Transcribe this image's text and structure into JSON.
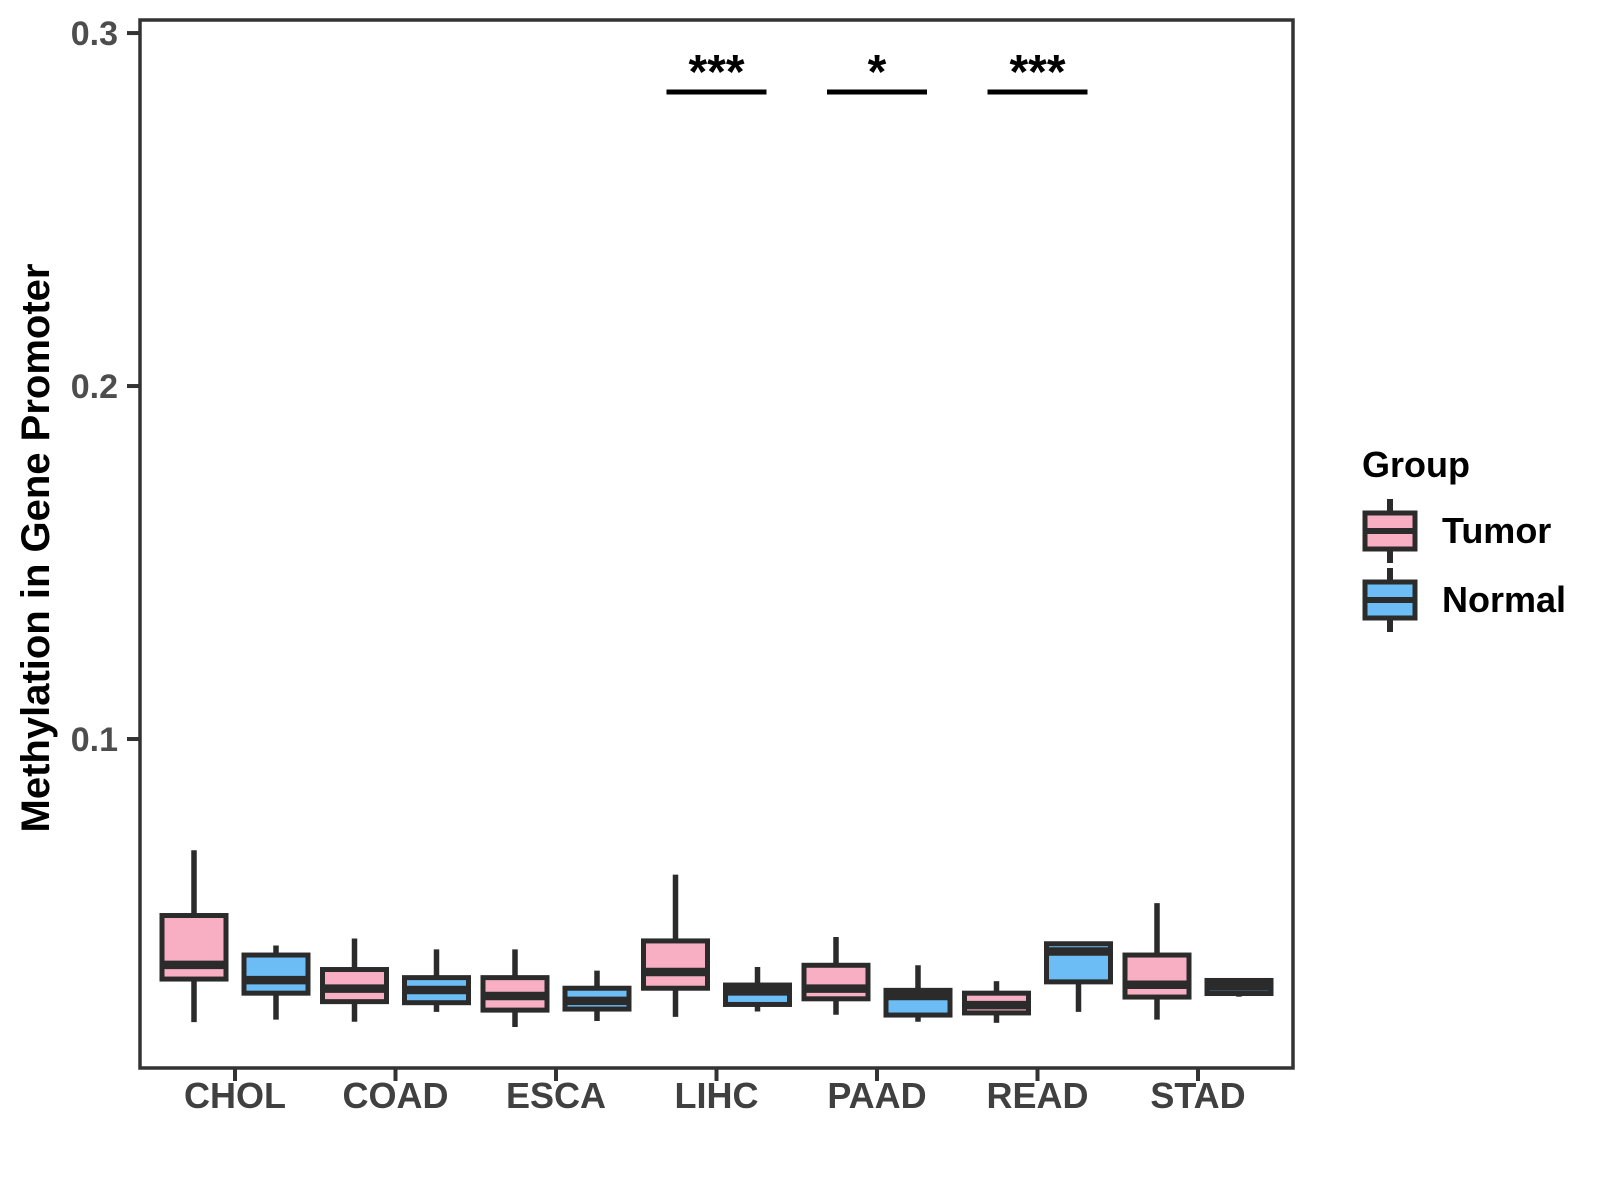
{
  "figure": {
    "kind": "grouped boxplot",
    "background": "#ffffff"
  },
  "colors": {
    "tumor_fill": "#F9AFC3",
    "normal_fill": "#6CBCF5",
    "box_stroke": "#2B2B2B",
    "panel_border": "#333333",
    "tick_text": "#4D4D4D",
    "xlabel_text": "#404040",
    "sig_text": "#000000"
  },
  "legend": {
    "title": "Group",
    "items": [
      {
        "label": "Tumor",
        "color_key": "tumor_fill"
      },
      {
        "label": "Normal",
        "color_key": "normal_fill"
      }
    ]
  },
  "significance": [
    {
      "category": "LIHC",
      "label": "***"
    },
    {
      "category": "PAAD",
      "label": "*"
    },
    {
      "category": "READ",
      "label": "***"
    }
  ],
  "chart_data": {
    "type": "boxplot",
    "title": "",
    "xlabel": "",
    "ylabel": "Methylation in Gene Promoter",
    "categories": [
      "CHOL",
      "COAD",
      "ESCA",
      "LIHC",
      "PAAD",
      "READ",
      "STAD"
    ],
    "ylim": [
      0.0068,
      0.3037
    ],
    "yticks": [
      {
        "value": 0.1,
        "label": "0.1"
      },
      {
        "value": 0.2,
        "label": "0.2"
      },
      {
        "value": 0.3,
        "label": "0.3"
      }
    ],
    "grid": false,
    "legend_position": "right",
    "series": [
      {
        "name": "Tumor",
        "color_key": "tumor_fill",
        "boxes": [
          {
            "category": "CHOL",
            "min": 0.0198,
            "q1": 0.032,
            "median": 0.036,
            "q3": 0.05,
            "max": 0.0685
          },
          {
            "category": "COAD",
            "min": 0.0199,
            "q1": 0.0256,
            "median": 0.0293,
            "q3": 0.0347,
            "max": 0.0435
          },
          {
            "category": "ESCA",
            "min": 0.0184,
            "q1": 0.0232,
            "median": 0.0272,
            "q3": 0.0324,
            "max": 0.0404
          },
          {
            "category": "LIHC",
            "min": 0.0213,
            "q1": 0.0294,
            "median": 0.034,
            "q3": 0.0428,
            "max": 0.0616
          },
          {
            "category": "PAAD",
            "min": 0.0219,
            "q1": 0.0264,
            "median": 0.0293,
            "q3": 0.0359,
            "max": 0.0439
          },
          {
            "category": "READ",
            "min": 0.0196,
            "q1": 0.0224,
            "median": 0.0246,
            "q3": 0.028,
            "max": 0.0314
          },
          {
            "category": "STAD",
            "min": 0.0205,
            "q1": 0.0269,
            "median": 0.0304,
            "q3": 0.0388,
            "max": 0.0535
          }
        ]
      },
      {
        "name": "Normal",
        "color_key": "normal_fill",
        "boxes": [
          {
            "category": "CHOL",
            "min": 0.0205,
            "q1": 0.028,
            "median": 0.0317,
            "q3": 0.0388,
            "max": 0.0415
          },
          {
            "category": "COAD",
            "min": 0.0227,
            "q1": 0.0253,
            "median": 0.0289,
            "q3": 0.0324,
            "max": 0.0404
          },
          {
            "category": "ESCA",
            "min": 0.0201,
            "q1": 0.0235,
            "median": 0.0258,
            "q3": 0.0294,
            "max": 0.0344
          },
          {
            "category": "LIHC",
            "min": 0.0228,
            "q1": 0.0248,
            "median": 0.0285,
            "q3": 0.0303,
            "max": 0.0354
          },
          {
            "category": "PAAD",
            "min": 0.0199,
            "q1": 0.0218,
            "median": 0.0272,
            "q3": 0.0288,
            "max": 0.0359
          },
          {
            "category": "READ",
            "min": 0.0227,
            "q1": 0.0312,
            "median": 0.0398,
            "q3": 0.042,
            "max": 0.0422
          },
          {
            "category": "STAD",
            "min": 0.027,
            "q1": 0.0279,
            "median": 0.0299,
            "q3": 0.0316,
            "max": 0.0322
          }
        ]
      }
    ]
  }
}
